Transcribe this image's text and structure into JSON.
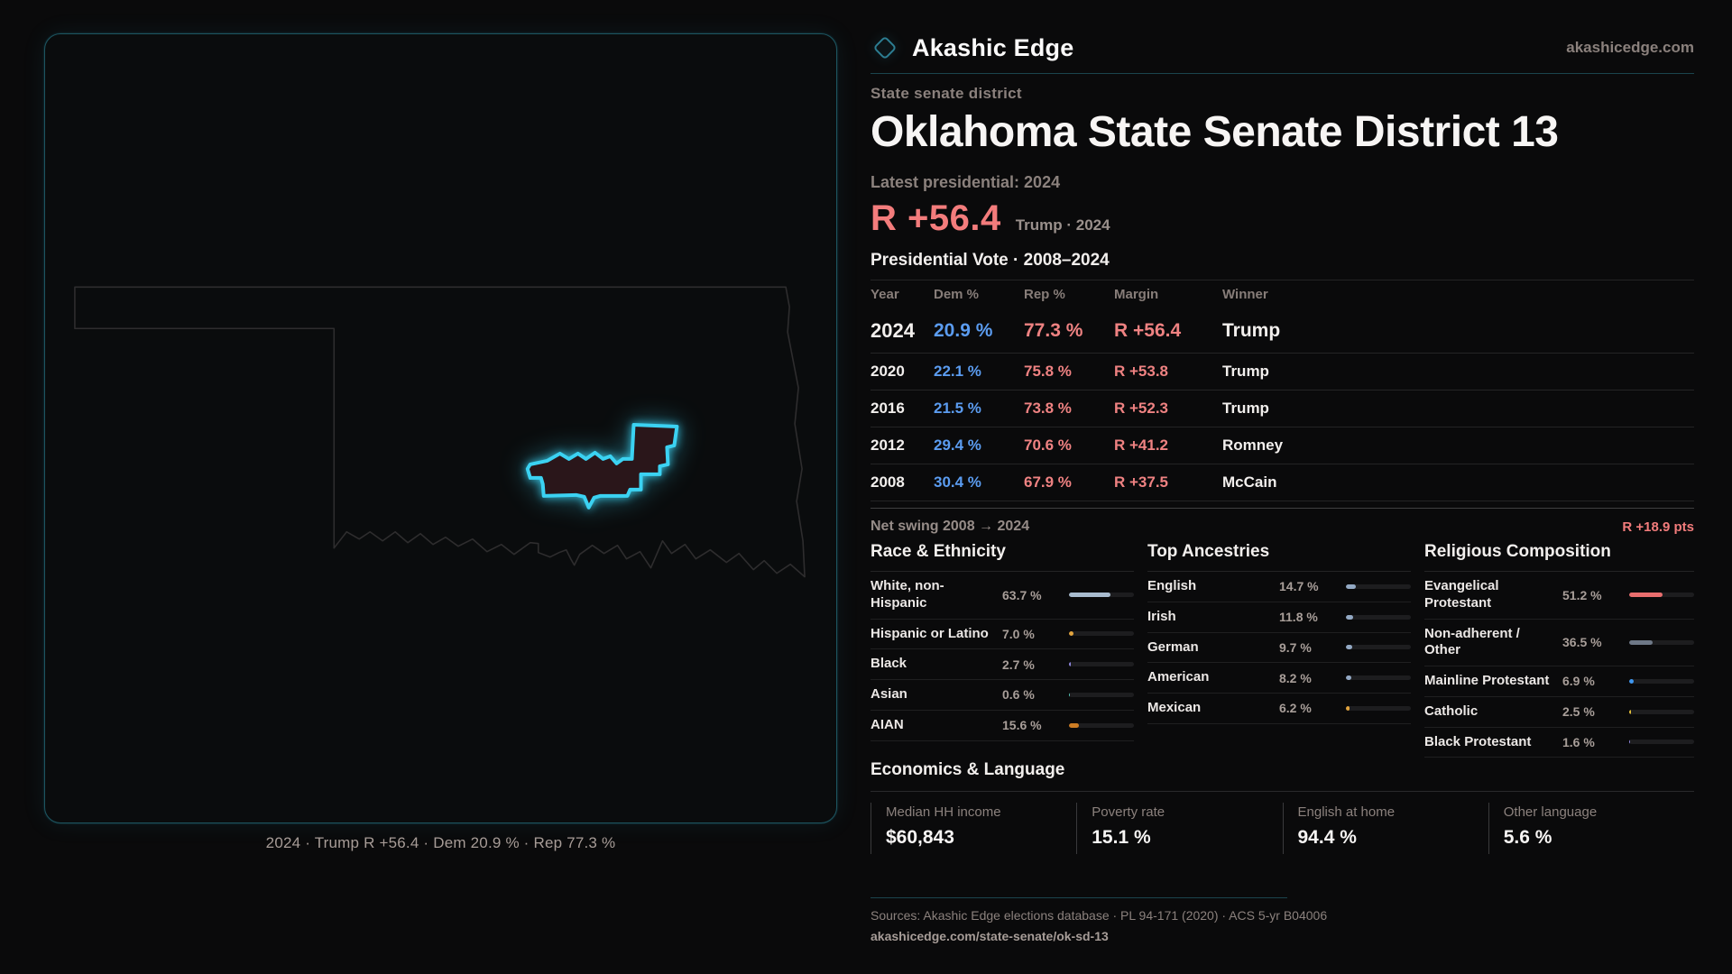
{
  "brand": {
    "name": "Akashic Edge",
    "domain": "akashicedge.com"
  },
  "header": {
    "kicker": "State senate district",
    "title": "Oklahoma State Senate District 13"
  },
  "latest": {
    "label": "Latest presidential: 2024",
    "margin": "R +56.4",
    "note": "Trump · 2024"
  },
  "vote_table": {
    "title": "Presidential Vote · 2008–2024",
    "columns": [
      "Year",
      "Dem %",
      "Rep %",
      "Margin",
      "Winner"
    ],
    "rows": [
      {
        "year": "2024",
        "dem": "20.9 %",
        "rep": "77.3 %",
        "margin": "R +56.4",
        "winner": "Trump",
        "emphasis": true
      },
      {
        "year": "2020",
        "dem": "22.1 %",
        "rep": "75.8 %",
        "margin": "R +53.8",
        "winner": "Trump",
        "emphasis": false
      },
      {
        "year": "2016",
        "dem": "21.5 %",
        "rep": "73.8 %",
        "margin": "R +52.3",
        "winner": "Trump",
        "emphasis": false
      },
      {
        "year": "2012",
        "dem": "29.4 %",
        "rep": "70.6 %",
        "margin": "R +41.2",
        "winner": "Romney",
        "emphasis": false
      },
      {
        "year": "2008",
        "dem": "30.4 %",
        "rep": "67.9 %",
        "margin": "R +37.5",
        "winner": "McCain",
        "emphasis": false
      }
    ]
  },
  "swing": {
    "label": "Net swing 2008 → 2024",
    "value": "R +18.9 pts"
  },
  "demographics": [
    {
      "title": "Race & Ethnicity",
      "rows": [
        {
          "label": "White, non-Hispanic",
          "value": "63.7 %",
          "pct": 63.7,
          "color": "#a9bccf"
        },
        {
          "label": "Hispanic or Latino",
          "value": "7.0 %",
          "pct": 7.0,
          "color": "#e2a43e"
        },
        {
          "label": "Black",
          "value": "2.7 %",
          "pct": 2.7,
          "color": "#8d85dd"
        },
        {
          "label": "Asian",
          "value": "0.6 %",
          "pct": 0.6,
          "color": "#56c4b6"
        },
        {
          "label": "AIAN",
          "value": "15.6 %",
          "pct": 15.6,
          "color": "#cd7d24"
        }
      ]
    },
    {
      "title": "Top Ancestries",
      "rows": [
        {
          "label": "English",
          "value": "14.7 %",
          "pct": 14.7,
          "color": "#93a9c4"
        },
        {
          "label": "Irish",
          "value": "11.8 %",
          "pct": 11.8,
          "color": "#93a9c4"
        },
        {
          "label": "German",
          "value": "9.7 %",
          "pct": 9.7,
          "color": "#93a9c4"
        },
        {
          "label": "American",
          "value": "8.2 %",
          "pct": 8.2,
          "color": "#93a9c4"
        },
        {
          "label": "Mexican",
          "value": "6.2 %",
          "pct": 6.2,
          "color": "#e2a43e"
        }
      ]
    },
    {
      "title": "Religious Composition",
      "rows": [
        {
          "label": "Evangelical Protestant",
          "value": "51.2 %",
          "pct": 51.2,
          "color": "#e96e6e"
        },
        {
          "label": "Non-adherent / Other",
          "value": "36.5 %",
          "pct": 36.5,
          "color": "#6e7887"
        },
        {
          "label": "Mainline Protestant",
          "value": "6.9 %",
          "pct": 6.9,
          "color": "#3f97f0"
        },
        {
          "label": "Catholic",
          "value": "2.5 %",
          "pct": 2.5,
          "color": "#e3bf3a"
        },
        {
          "label": "Black Protestant",
          "value": "1.6 %",
          "pct": 1.6,
          "color": "#9088e0"
        }
      ]
    }
  ],
  "economics": {
    "title": "Economics & Language",
    "stats": [
      {
        "label": "Median HH income",
        "value": "$60,843"
      },
      {
        "label": "Poverty rate",
        "value": "15.1 %"
      },
      {
        "label": "English at home",
        "value": "94.4 %"
      },
      {
        "label": "Other language",
        "value": "5.6 %"
      }
    ]
  },
  "map": {
    "caption": "2024 · Trump R +56.4 · Dem 20.9 % · Rep 77.3 %"
  },
  "footer": {
    "sources": "Sources: Akashic Edge elections database · PL 94-171 (2020) · ACS 5-yr B04006",
    "url": "akashicedge.com/state-senate/ok-sd-13"
  },
  "palette": {
    "dem_blue": "#5b9cf0",
    "rep_red": "#ef8282",
    "accent_salmon": "#f37c7c",
    "district_glow_cyan": "#3bd2f2",
    "divider_teal": "#1b444d"
  }
}
